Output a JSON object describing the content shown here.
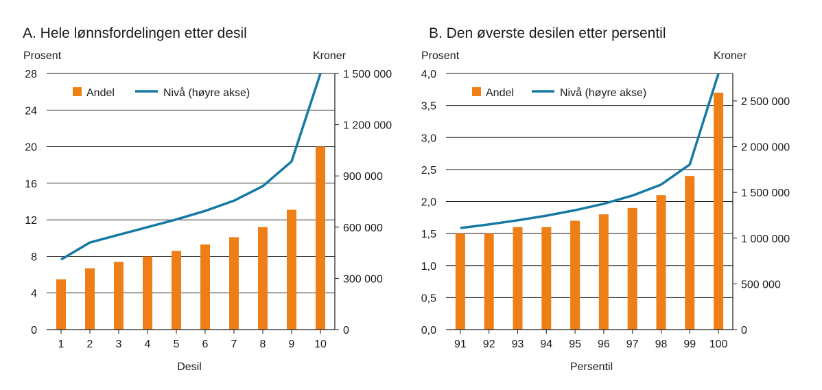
{
  "colors": {
    "bar": "#ee7f16",
    "line": "#1479a3",
    "grid": "#1a1a1a",
    "text": "#1a1a1a"
  },
  "chart_data": [
    {
      "type": "bar",
      "title": "A.  Hele lønnsfordelingen etter desil",
      "y_left_unit": "Prosent",
      "y_right_unit": "Kroner",
      "xlabel": "Desil",
      "categories": [
        "1",
        "2",
        "3",
        "4",
        "5",
        "6",
        "7",
        "8",
        "9",
        "10"
      ],
      "series": [
        {
          "name": "Andel",
          "type": "bar",
          "axis": "left",
          "values": [
            5.5,
            6.7,
            7.4,
            8.0,
            8.6,
            9.3,
            10.1,
            11.2,
            13.1,
            20.0
          ]
        },
        {
          "name": "Nivå (høyre akse)",
          "type": "line",
          "axis": "right",
          "values": [
            410000,
            510000,
            555000,
            600000,
            645000,
            695000,
            755000,
            840000,
            985000,
            1500000
          ]
        }
      ],
      "ylim_left": [
        0,
        28
      ],
      "yticks_left": [
        0,
        4,
        8,
        12,
        16,
        20,
        24,
        28
      ],
      "yticks_left_labels": [
        "0",
        "4",
        "8",
        "12",
        "16",
        "20",
        "24",
        "28"
      ],
      "ylim_right": [
        0,
        1500000
      ],
      "yticks_right": [
        0,
        300000,
        600000,
        900000,
        1200000,
        1500000
      ],
      "yticks_right_labels": [
        "0",
        "300 000",
        "600 000",
        "900 000",
        "1 200 000",
        "1 500 000"
      ],
      "grid": true,
      "legend_position": "top-left"
    },
    {
      "type": "bar",
      "title": "B.  Den øverste desilen etter persentil",
      "y_left_unit": "Prosent",
      "y_right_unit": "Kroner",
      "xlabel": "Persentil",
      "categories": [
        "91",
        "92",
        "93",
        "94",
        "95",
        "96",
        "97",
        "98",
        "99",
        "100"
      ],
      "series": [
        {
          "name": "Andel",
          "type": "bar",
          "axis": "left",
          "values": [
            1.5,
            1.5,
            1.6,
            1.6,
            1.7,
            1.8,
            1.9,
            2.1,
            2.4,
            3.7
          ]
        },
        {
          "name": "Nivå (høyre akse)",
          "type": "line",
          "axis": "right",
          "values": [
            1110000,
            1150000,
            1195000,
            1245000,
            1305000,
            1375000,
            1465000,
            1585000,
            1805000,
            2800000
          ]
        }
      ],
      "ylim_left": [
        0,
        4
      ],
      "yticks_left": [
        0,
        0.5,
        1,
        1.5,
        2,
        2.5,
        3,
        3.5,
        4
      ],
      "yticks_left_labels": [
        "0,0",
        "0,5",
        "1,0",
        "1,5",
        "2,0",
        "2,5",
        "3,0",
        "3,5",
        "4,0"
      ],
      "ylim_right": [
        0,
        2800000
      ],
      "yticks_right": [
        0,
        500000,
        1000000,
        1500000,
        2000000,
        2500000
      ],
      "yticks_right_labels": [
        "0",
        "500 000",
        "1 000 000",
        "1 500 000",
        "2 000 000",
        "2 500 000"
      ],
      "grid": true,
      "legend_position": "top-left"
    }
  ]
}
